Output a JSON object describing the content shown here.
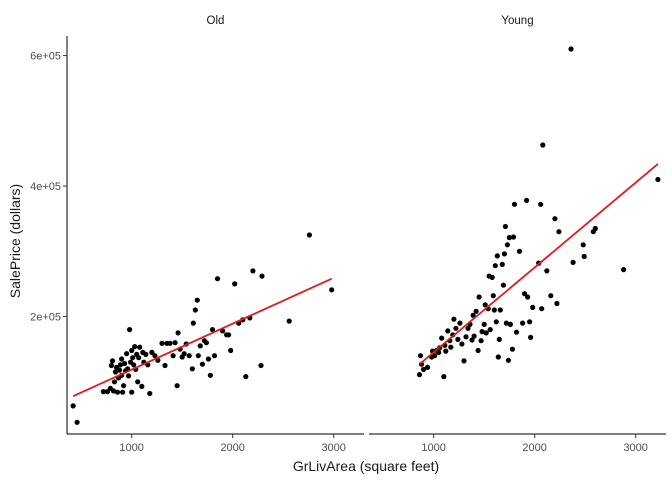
{
  "chart_data": {
    "type": "scatter",
    "xlabel": "GrLivArea (square feet)",
    "ylabel": "SalePrice (dollars)",
    "xlim": [
      360,
      3300
    ],
    "ylim": [
      20000,
      630000
    ],
    "x_ticks": [
      1000,
      2000,
      3000
    ],
    "x_tick_labels": [
      "1000",
      "2000",
      "3000"
    ],
    "y_ticks": [
      200000,
      400000,
      600000
    ],
    "y_tick_labels": [
      "2e+05",
      "4e+05",
      "6e+05"
    ],
    "grid": false,
    "legend": "none",
    "point_color": "#000000",
    "fit_color": "#e41a1c",
    "panels": [
      {
        "strip_label": "Old",
        "points": [
          [
            420,
            63000
          ],
          [
            460,
            38000
          ],
          [
            720,
            85000
          ],
          [
            760,
            85000
          ],
          [
            790,
            90000
          ],
          [
            800,
            125000
          ],
          [
            810,
            132000
          ],
          [
            820,
            86000
          ],
          [
            830,
            100000
          ],
          [
            840,
            115000
          ],
          [
            850,
            122000
          ],
          [
            860,
            84000
          ],
          [
            870,
            106000
          ],
          [
            880,
            118000
          ],
          [
            890,
            126000
          ],
          [
            900,
            110000
          ],
          [
            900,
            135000
          ],
          [
            910,
            84000
          ],
          [
            920,
            94000
          ],
          [
            930,
            128000
          ],
          [
            940,
            117000
          ],
          [
            950,
            143000
          ],
          [
            960,
            120000
          ],
          [
            970,
            109000
          ],
          [
            980,
            180000
          ],
          [
            990,
            130000
          ],
          [
            1000,
            148000
          ],
          [
            1000,
            84000
          ],
          [
            1010,
            137000
          ],
          [
            1020,
            126000
          ],
          [
            1030,
            154000
          ],
          [
            1040,
            119000
          ],
          [
            1050,
            142000
          ],
          [
            1060,
            100000
          ],
          [
            1070,
            137000
          ],
          [
            1080,
            153000
          ],
          [
            1100,
            93000
          ],
          [
            1110,
            145000
          ],
          [
            1120,
            130000
          ],
          [
            1140,
            142000
          ],
          [
            1160,
            126000
          ],
          [
            1180,
            82000
          ],
          [
            1200,
            145000
          ],
          [
            1230,
            140000
          ],
          [
            1260,
            133000
          ],
          [
            1300,
            159000
          ],
          [
            1330,
            125000
          ],
          [
            1350,
            159000
          ],
          [
            1380,
            159000
          ],
          [
            1410,
            140000
          ],
          [
            1430,
            160000
          ],
          [
            1450,
            94000
          ],
          [
            1460,
            175000
          ],
          [
            1480,
            150000
          ],
          [
            1500,
            138000
          ],
          [
            1520,
            143000
          ],
          [
            1540,
            158000
          ],
          [
            1570,
            140000
          ],
          [
            1600,
            120000
          ],
          [
            1610,
            190000
          ],
          [
            1630,
            210000
          ],
          [
            1650,
            225000
          ],
          [
            1660,
            140000
          ],
          [
            1680,
            155000
          ],
          [
            1700,
            127000
          ],
          [
            1720,
            163000
          ],
          [
            1740,
            160000
          ],
          [
            1760,
            135000
          ],
          [
            1780,
            110000
          ],
          [
            1800,
            180000
          ],
          [
            1820,
            140000
          ],
          [
            1850,
            258000
          ],
          [
            1900,
            178000
          ],
          [
            1940,
            172000
          ],
          [
            1960,
            172000
          ],
          [
            1980,
            148000
          ],
          [
            2020,
            250000
          ],
          [
            2060,
            190000
          ],
          [
            2100,
            195000
          ],
          [
            2130,
            108000
          ],
          [
            2170,
            198000
          ],
          [
            2200,
            270000
          ],
          [
            2280,
            125000
          ],
          [
            2290,
            262000
          ],
          [
            2560,
            193000
          ],
          [
            2760,
            325000
          ],
          [
            2980,
            241000
          ]
        ],
        "fit_line": [
          [
            420,
            78000
          ],
          [
            2980,
            258000
          ]
        ]
      },
      {
        "strip_label": "Young",
        "points": [
          [
            860,
            111000
          ],
          [
            870,
            140000
          ],
          [
            880,
            127000
          ],
          [
            900,
            119000
          ],
          [
            940,
            122000
          ],
          [
            980,
            138000
          ],
          [
            990,
            147000
          ],
          [
            1010,
            140000
          ],
          [
            1030,
            148000
          ],
          [
            1050,
            145000
          ],
          [
            1060,
            152000
          ],
          [
            1080,
            167000
          ],
          [
            1100,
            108000
          ],
          [
            1110,
            156000
          ],
          [
            1120,
            147000
          ],
          [
            1140,
            178000
          ],
          [
            1160,
            163000
          ],
          [
            1170,
            153000
          ],
          [
            1190,
            172000
          ],
          [
            1200,
            196000
          ],
          [
            1220,
            182000
          ],
          [
            1240,
            165000
          ],
          [
            1260,
            190000
          ],
          [
            1280,
            158000
          ],
          [
            1300,
            132000
          ],
          [
            1320,
            169000
          ],
          [
            1340,
            182000
          ],
          [
            1360,
            188000
          ],
          [
            1380,
            164000
          ],
          [
            1390,
            202000
          ],
          [
            1400,
            170000
          ],
          [
            1420,
            208000
          ],
          [
            1440,
            148000
          ],
          [
            1450,
            230000
          ],
          [
            1470,
            163000
          ],
          [
            1480,
            177000
          ],
          [
            1500,
            188000
          ],
          [
            1510,
            218000
          ],
          [
            1520,
            175000
          ],
          [
            1540,
            212000
          ],
          [
            1550,
            262000
          ],
          [
            1560,
            180000
          ],
          [
            1580,
            260000
          ],
          [
            1590,
            232000
          ],
          [
            1600,
            210000
          ],
          [
            1610,
            278000
          ],
          [
            1620,
            192000
          ],
          [
            1630,
            293000
          ],
          [
            1640,
            138000
          ],
          [
            1650,
            165000
          ],
          [
            1660,
            210000
          ],
          [
            1680,
            280000
          ],
          [
            1690,
            248000
          ],
          [
            1700,
            296000
          ],
          [
            1710,
            338000
          ],
          [
            1720,
            190000
          ],
          [
            1730,
            310000
          ],
          [
            1740,
            133000
          ],
          [
            1750,
            321000
          ],
          [
            1760,
            188000
          ],
          [
            1780,
            150000
          ],
          [
            1790,
            322000
          ],
          [
            1800,
            372000
          ],
          [
            1820,
            176000
          ],
          [
            1850,
            300000
          ],
          [
            1880,
            190000
          ],
          [
            1900,
            235000
          ],
          [
            1920,
            378000
          ],
          [
            1930,
            230000
          ],
          [
            1950,
            192000
          ],
          [
            1960,
            168000
          ],
          [
            1980,
            214000
          ],
          [
            2040,
            282000
          ],
          [
            2060,
            372000
          ],
          [
            2070,
            212000
          ],
          [
            2080,
            463000
          ],
          [
            2120,
            270000
          ],
          [
            2160,
            232000
          ],
          [
            2200,
            350000
          ],
          [
            2220,
            220000
          ],
          [
            2240,
            330000
          ],
          [
            2360,
            610000
          ],
          [
            2380,
            283000
          ],
          [
            2480,
            310000
          ],
          [
            2490,
            292000
          ],
          [
            2580,
            330000
          ],
          [
            2600,
            335000
          ],
          [
            2880,
            272000
          ],
          [
            3220,
            410000
          ]
        ],
        "fit_line": [
          [
            860,
            127000
          ],
          [
            3220,
            434000
          ]
        ]
      }
    ]
  }
}
